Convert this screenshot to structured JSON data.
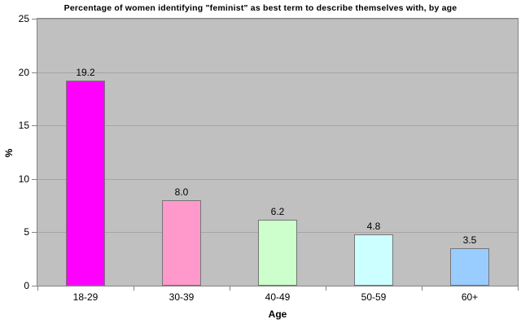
{
  "chart_data": {
    "type": "bar",
    "title": "Percentage of women identifying \"feminist\" as best term to describe themselves with, by age",
    "xlabel": "Age",
    "ylabel": "%",
    "categories": [
      "18-29",
      "30-39",
      "40-49",
      "50-59",
      "60+"
    ],
    "values": [
      19.2,
      8.0,
      6.2,
      4.8,
      3.5
    ],
    "value_labels": [
      "19.2",
      "8.0",
      "6.2",
      "4.8",
      "3.5"
    ],
    "bar_colors": [
      "#ff00ff",
      "#ff99cc",
      "#ccffcc",
      "#ccffff",
      "#99ccff"
    ],
    "ylim": [
      0,
      25
    ],
    "yticks": [
      0,
      5,
      10,
      15,
      20,
      25
    ],
    "grid": true,
    "legend_position": "none",
    "colors": {
      "plot_background": "#c0c0c0",
      "gridline": "#a5a5a5",
      "axis": "#848484",
      "bar_border": "#767676",
      "text": "#000000",
      "page_background": "#ffffff"
    }
  }
}
